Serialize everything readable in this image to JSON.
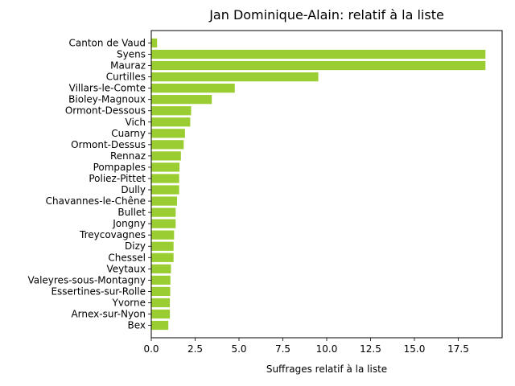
{
  "chart_data": {
    "type": "bar",
    "orientation": "horizontal",
    "title": "Jan Dominique-Alain: relatif à la liste",
    "xlabel": "Suffrages relatif à la liste",
    "ylabel": "",
    "xlim": [
      0,
      20.0
    ],
    "xticks": [
      "0.0",
      "2.5",
      "5.0",
      "7.5",
      "10.0",
      "12.5",
      "15.0",
      "17.5"
    ],
    "xtick_values": [
      0,
      2.5,
      5.0,
      7.5,
      10.0,
      12.5,
      15.0,
      17.5
    ],
    "bar_color": "#9acd32",
    "grid": false,
    "categories": [
      "Canton de Vaud",
      "Syens",
      "Mauraz",
      "Curtilles",
      "Villars-le-Comte",
      "Bioley-Magnoux",
      "Ormont-Dessous",
      "Vich",
      "Cuarny",
      "Ormont-Dessus",
      "Rennaz",
      "Pompaples",
      "Poliez-Pittet",
      "Dully",
      "Chavannes-le-Chêne",
      "Bullet",
      "Jongny",
      "Treycovagnes",
      "Dizy",
      "Chessel",
      "Veytaux",
      "Valeyres-sous-Montagny",
      "Essertines-sur-Rolle",
      "Yvorne",
      "Arnex-sur-Nyon",
      "Bex"
    ],
    "values": [
      0.33,
      19.05,
      19.05,
      9.52,
      4.76,
      3.45,
      2.27,
      2.22,
      1.92,
      1.85,
      1.69,
      1.61,
      1.59,
      1.59,
      1.47,
      1.39,
      1.39,
      1.3,
      1.27,
      1.27,
      1.12,
      1.09,
      1.08,
      1.06,
      1.06,
      0.97
    ]
  }
}
